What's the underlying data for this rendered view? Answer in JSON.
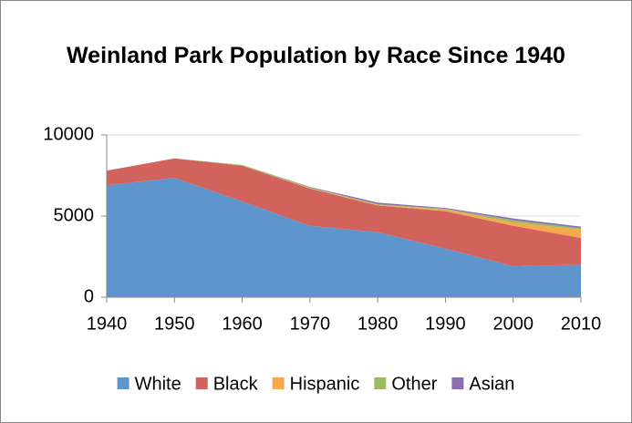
{
  "chart_data": {
    "type": "stacked_area",
    "title": "Weinland Park Population by Race Since 1940",
    "x": [
      1940,
      1950,
      1960,
      1970,
      1980,
      1990,
      2000,
      2010
    ],
    "xlim": [
      1940,
      2010
    ],
    "xticks": [
      1940,
      1950,
      1960,
      1970,
      1980,
      1990,
      2000,
      2010
    ],
    "ylim": [
      0,
      10000
    ],
    "yticks": [
      0,
      5000,
      10000
    ],
    "grid": true,
    "legend": "bottom",
    "series": [
      {
        "name": "White",
        "color": "#5f95cd",
        "values": [
          6900,
          7350,
          5900,
          4400,
          4000,
          3000,
          1900,
          2000
        ]
      },
      {
        "name": "Black",
        "color": "#d2625c",
        "values": [
          900,
          1200,
          2200,
          2300,
          1650,
          2300,
          2500,
          1650
        ]
      },
      {
        "name": "Hispanic",
        "color": "#f8a94e",
        "values": [
          0,
          0,
          0,
          20,
          30,
          100,
          200,
          500
        ]
      },
      {
        "name": "Other",
        "color": "#9dbb61",
        "values": [
          0,
          0,
          50,
          50,
          50,
          50,
          150,
          100
        ]
      },
      {
        "name": "Asian",
        "color": "#8a6fae",
        "values": [
          0,
          0,
          0,
          30,
          100,
          50,
          100,
          100
        ]
      }
    ]
  }
}
